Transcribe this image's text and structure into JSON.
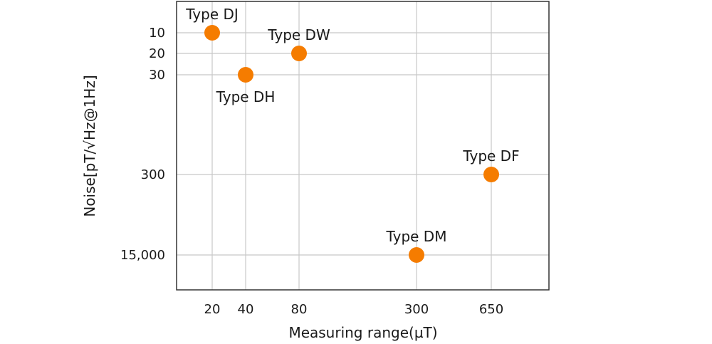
{
  "chart_data": {
    "type": "scatter",
    "title": "",
    "xlabel": "Measuring range(µT)",
    "ylabel": "Noise[pT/√Hz@1Hz]",
    "x_ticks": [
      20,
      40,
      80,
      300,
      650
    ],
    "x_tick_labels": [
      "20",
      "40",
      "80",
      "300",
      "650"
    ],
    "y_ticks": [
      10,
      20,
      30,
      300,
      15000
    ],
    "y_tick_labels": [
      "10",
      "20",
      "30",
      "300",
      "15,000"
    ],
    "grid": true,
    "marker_color": "#f57c00",
    "points": [
      {
        "label": "Type DJ",
        "x": 20,
        "y": 10
      },
      {
        "label": "Type DW",
        "x": 80,
        "y": 20
      },
      {
        "label": "Type DH",
        "x": 40,
        "y": 30
      },
      {
        "label": "Type DF",
        "x": 650,
        "y": 300
      },
      {
        "label": "Type DM",
        "x": 300,
        "y": 15000
      }
    ]
  }
}
